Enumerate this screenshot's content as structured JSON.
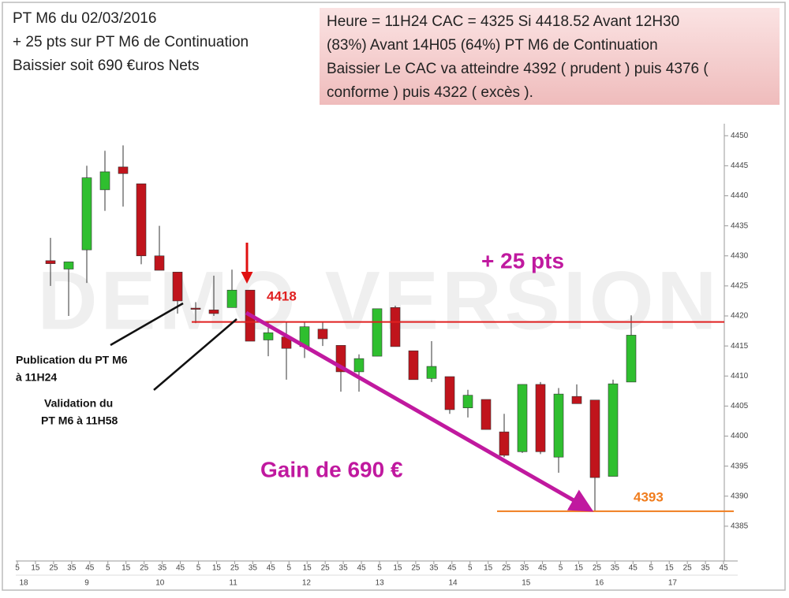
{
  "chart_data": {
    "type": "candlestick",
    "header_lines": [
      "PT M6 du 02/03/2016",
      "+ 25 pts sur PT M6 de Continuation",
      "Baissier  soit 690 €uros Nets"
    ],
    "info_lines": [
      "Heure = 11H24 CAC = 4325 Si 4418.52 Avant 12H30",
      "(83%)  Avant 14H05 (64%)    PT M6 de Continuation",
      "Baissier Le CAC va atteindre 4392 ( prudent ) puis 4376 (",
      "conforme ) puis 4322 ( excès )."
    ],
    "watermark": "DEMO VERSION",
    "annotations": {
      "signal_level": "4418",
      "target_level": "4393",
      "points": "+ 25 pts",
      "gain": "Gain de 690 €",
      "publication": [
        "Publication du PT M6",
        "à 11H24"
      ],
      "validation": [
        "Validation du",
        "PT M6 à 11H58"
      ]
    },
    "open": [
      4429.2,
      4427.8,
      4431,
      4441,
      4444.8,
      4442,
      4430,
      4427.3,
      4421.3,
      4421,
      4421.4,
      4424.3,
      4416,
      4416.5,
      4414.9,
      4417.8,
      4415.1,
      4410.7,
      4413.3,
      4421.4,
      4414.2,
      4409.6,
      4409.9,
      4404.7,
      4406.1,
      4400.7,
      4397.4,
      4408.6,
      4396.5,
      4406.6,
      4406,
      4393.3,
      4409
    ],
    "high": [
      4433,
      4429,
      4445,
      4447.5,
      4448.4,
      4442,
      4435,
      4427.3,
      4422.3,
      4426.7,
      4427.7,
      4424.3,
      4419,
      4419,
      4419,
      4419,
      4415.1,
      4413.6,
      4421.2,
      4421.7,
      4414.2,
      4415.8,
      4409.9,
      4407.7,
      4406.1,
      4403.7,
      4408.6,
      4409,
      4408,
      4408.6,
      4406,
      4409.4,
      4420.1
    ],
    "low": [
      4425,
      4420,
      4425.5,
      4437.5,
      4438.2,
      4428.6,
      4427.6,
      4420.4,
      4418.8,
      4420,
      4421.4,
      4415.8,
      4413.3,
      4409.4,
      4413,
      4415,
      4407.4,
      4407.4,
      4413.3,
      4414.9,
      4409.4,
      4409,
      4403.7,
      4403.1,
      4401.1,
      4396.5,
      4397.2,
      4397,
      4393.9,
      4405.4,
      4387.6,
      4393.3,
      4409
    ],
    "close": [
      4428.7,
      4429,
      4443,
      4444,
      4443.7,
      4430,
      4427.6,
      4422.5,
      4421.2,
      4420.4,
      4424.3,
      4415.8,
      4417.2,
      4414.6,
      4418.2,
      4416.2,
      4410.7,
      4412.9,
      4421.2,
      4414.9,
      4409.4,
      4411.6,
      4404.4,
      4406.8,
      4401.1,
      4396.8,
      4408.6,
      4397.4,
      4407,
      4405.4,
      4393.1,
      4408.7,
      4416.8
    ],
    "up_color": "#2fbf2f",
    "down_color": "#c0141c",
    "levels": [
      {
        "value": 4419,
        "color": "#e02020"
      },
      {
        "value": 4387.5,
        "color": "#f07d1e"
      }
    ],
    "ylim": [
      4380,
      4452
    ],
    "yticks": [
      4385,
      4390,
      4395,
      4400,
      4405,
      4410,
      4415,
      4420,
      4425,
      4430,
      4435,
      4440,
      4445,
      4450
    ],
    "minute_labels": [
      5,
      15,
      25,
      35,
      45,
      5,
      15,
      25,
      35,
      45,
      5,
      15,
      25,
      35,
      45,
      5,
      15,
      25,
      35,
      45,
      5,
      15,
      25,
      35,
      45,
      5,
      15,
      25,
      35,
      45,
      5,
      15,
      25,
      35,
      45,
      5,
      15,
      25,
      35,
      45
    ],
    "hour_labels": [
      18,
      9,
      10,
      11,
      12,
      13,
      14,
      15,
      16,
      17
    ]
  }
}
